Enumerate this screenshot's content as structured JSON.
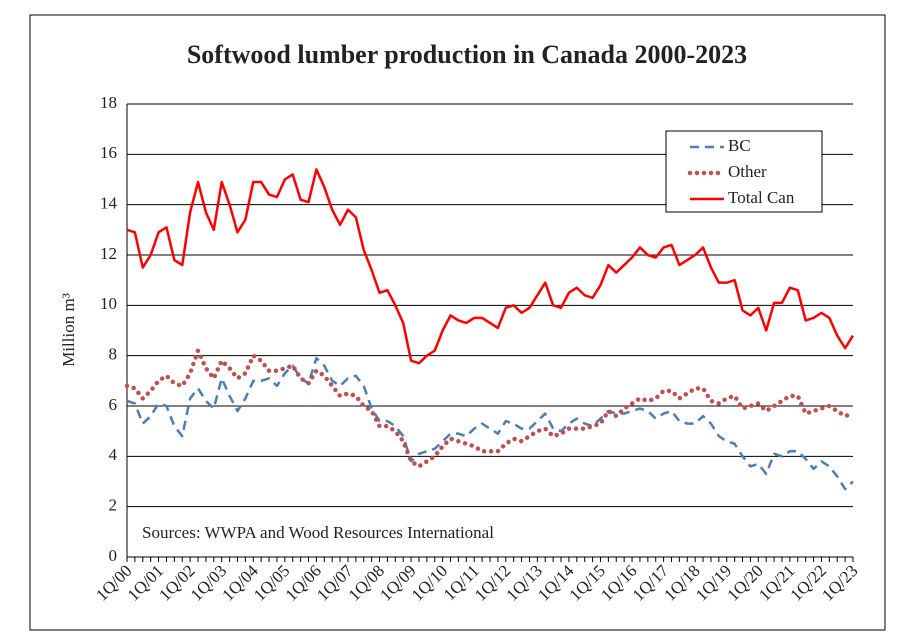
{
  "chart_data": {
    "type": "line",
    "title": "Softwood lumber production in Canada 2000-2023",
    "y_label": "Million m³",
    "annotation": "Sources: WWPA and Wood Resources International",
    "categories": [
      "1Q/00",
      null,
      null,
      null,
      "1Q/01",
      null,
      null,
      null,
      "1Q/02",
      null,
      null,
      null,
      "1Q/03",
      null,
      null,
      null,
      "1Q/04",
      null,
      null,
      null,
      "1Q/05",
      null,
      null,
      null,
      "1Q/06",
      null,
      null,
      null,
      "1Q/07",
      null,
      null,
      null,
      "1Q/08",
      null,
      null,
      null,
      "1Q/09",
      null,
      null,
      null,
      "1Q/10",
      null,
      null,
      null,
      "1Q/11",
      null,
      null,
      null,
      "1Q/12",
      null,
      null,
      null,
      "1Q/13",
      null,
      null,
      null,
      "1Q/14",
      null,
      null,
      null,
      "1Q/15",
      null,
      null,
      null,
      "1Q/16",
      null,
      null,
      null,
      "1Q/17",
      null,
      null,
      null,
      "1Q/18",
      null,
      null,
      null,
      "1Q/19",
      null,
      null,
      null,
      "1Q/20",
      null,
      null,
      null,
      "1Q/21",
      null,
      null,
      null,
      "1Q/22",
      null,
      null,
      null,
      "1Q/23"
    ],
    "series": [
      {
        "name": "BC",
        "color": "#4a7ebb",
        "dash": "dashed",
        "values": [
          6.2,
          6.1,
          5.3,
          5.6,
          6.1,
          6.0,
          5.2,
          4.8,
          6.3,
          6.7,
          6.2,
          5.9,
          7.1,
          6.4,
          5.8,
          6.3,
          7.0,
          7.0,
          7.1,
          6.8,
          7.3,
          7.6,
          7.1,
          6.9,
          7.9,
          7.6,
          7.0,
          6.8,
          7.1,
          7.2,
          6.8,
          5.9,
          5.4,
          5.4,
          5.2,
          4.8,
          3.8,
          4.1,
          4.2,
          4.3,
          4.6,
          4.9,
          4.9,
          4.8,
          5.1,
          5.3,
          5.1,
          4.9,
          5.4,
          5.3,
          5.1,
          5.1,
          5.4,
          5.7,
          5.1,
          5.0,
          5.3,
          5.5,
          5.3,
          5.2,
          5.5,
          5.8,
          5.7,
          5.7,
          5.8,
          5.9,
          5.8,
          5.5,
          5.7,
          5.8,
          5.4,
          5.3,
          5.3,
          5.6,
          5.3,
          4.8,
          4.6,
          4.5,
          4.0,
          3.6,
          3.7,
          3.3,
          4.1,
          4.0,
          4.2,
          4.2,
          3.9,
          3.5,
          3.8,
          3.6,
          3.2,
          2.7,
          3.0
        ]
      },
      {
        "name": "Other",
        "color": "#c0504d",
        "dash": "dotted",
        "values": [
          6.8,
          6.7,
          6.3,
          6.6,
          7.0,
          7.2,
          6.9,
          6.8,
          7.3,
          8.2,
          7.5,
          7.1,
          7.8,
          7.5,
          7.1,
          7.3,
          8.0,
          7.8,
          7.4,
          7.4,
          7.5,
          7.6,
          7.1,
          6.9,
          7.4,
          7.2,
          6.8,
          6.4,
          6.5,
          6.4,
          6.0,
          5.8,
          5.2,
          5.2,
          5.0,
          4.6,
          3.8,
          3.6,
          3.8,
          4.0,
          4.4,
          4.7,
          4.6,
          4.5,
          4.4,
          4.2,
          4.2,
          4.2,
          4.5,
          4.7,
          4.6,
          4.8,
          5.0,
          5.1,
          4.8,
          4.9,
          5.1,
          5.1,
          5.1,
          5.2,
          5.3,
          5.8,
          5.6,
          5.9,
          6.1,
          6.3,
          6.2,
          6.3,
          6.6,
          6.6,
          6.3,
          6.5,
          6.7,
          6.7,
          6.2,
          6.1,
          6.3,
          6.4,
          5.9,
          6.0,
          6.1,
          5.8,
          6.0,
          6.2,
          6.4,
          6.4,
          5.7,
          5.8,
          5.9,
          6.0,
          5.8,
          5.6,
          5.7
        ]
      },
      {
        "name": "Total Can",
        "color": "#ff0000",
        "dash": "solid",
        "values": [
          13.0,
          12.9,
          11.5,
          12.0,
          12.9,
          13.1,
          11.8,
          11.6,
          13.7,
          14.9,
          13.7,
          13.0,
          14.9,
          14.0,
          12.9,
          13.4,
          14.9,
          14.9,
          14.4,
          14.3,
          15.0,
          15.2,
          14.2,
          14.1,
          15.4,
          14.7,
          13.8,
          13.2,
          13.8,
          13.5,
          12.2,
          11.4,
          10.5,
          10.6,
          10.0,
          9.3,
          7.8,
          7.7,
          8.0,
          8.2,
          9.0,
          9.6,
          9.4,
          9.3,
          9.5,
          9.5,
          9.3,
          9.1,
          9.9,
          10.0,
          9.7,
          9.9,
          10.4,
          10.9,
          10.0,
          9.9,
          10.5,
          10.7,
          10.4,
          10.3,
          10.8,
          11.6,
          11.3,
          11.6,
          11.9,
          12.3,
          12.0,
          11.9,
          12.3,
          12.4,
          11.6,
          11.8,
          12.0,
          12.3,
          11.5,
          10.9,
          10.9,
          11.0,
          9.8,
          9.6,
          9.9,
          9.0,
          10.1,
          10.1,
          10.7,
          10.6,
          9.4,
          9.5,
          9.7,
          9.5,
          8.8,
          8.3,
          8.8
        ]
      }
    ],
    "ylim": [
      0,
      18
    ],
    "yticks": [
      0,
      2,
      4,
      6,
      8,
      10,
      12,
      14,
      16,
      18
    ],
    "grid": true,
    "legend": "upper right"
  }
}
